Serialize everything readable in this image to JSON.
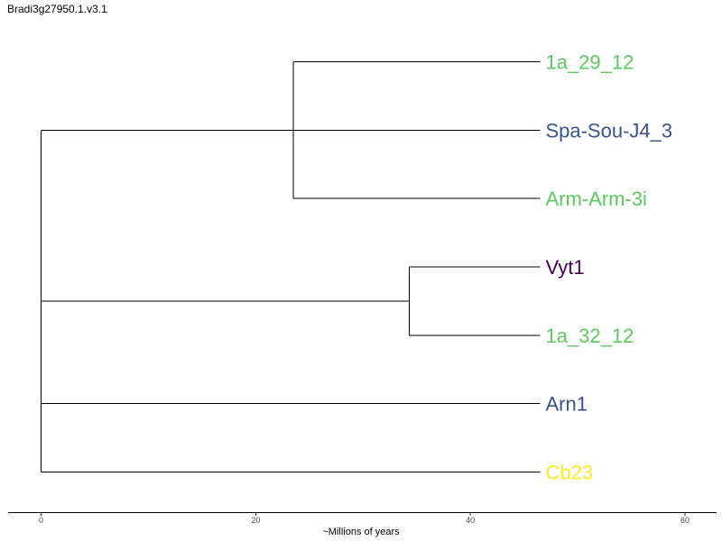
{
  "title": "Bradi3g27950.1.v3.1",
  "chart_data": {
    "type": "dendrogram",
    "xlabel": "~Millions of years",
    "xlim": [
      -3,
      63
    ],
    "x_ticks": [
      0,
      20,
      40,
      60
    ],
    "x_tick_labels": [
      "0",
      "20",
      "40",
      "60"
    ],
    "grid": false,
    "leaves": [
      {
        "id": "L1",
        "label": "1a_29_12",
        "color": "#5ec962"
      },
      {
        "id": "L2",
        "label": "Spa-Sou-J4_3",
        "color": "#3b528b"
      },
      {
        "id": "L3",
        "label": "Arm-Arm-3i",
        "color": "#5ec962"
      },
      {
        "id": "L4",
        "label": "Vyt1",
        "color": "#440154"
      },
      {
        "id": "L5",
        "label": "1a_32_12",
        "color": "#5ec962"
      },
      {
        "id": "L6",
        "label": "Arn1",
        "color": "#3b528b"
      },
      {
        "id": "L7",
        "label": "Cb23",
        "color": "#fde725"
      }
    ],
    "leaf_position": 46.5,
    "branches": [
      {
        "from": 0,
        "to": 23.5,
        "child": "N_A"
      },
      {
        "from": 23.5,
        "to": 46.5,
        "child": "L1"
      },
      {
        "from": 23.5,
        "to": 46.5,
        "child": "L3"
      },
      {
        "from": 0,
        "to": 46.5,
        "child": "L2"
      },
      {
        "from": 0,
        "to": 34.3,
        "child": "N_B"
      },
      {
        "from": 34.3,
        "to": 46.5,
        "child": "L4"
      },
      {
        "from": 34.3,
        "to": 46.5,
        "child": "L5"
      },
      {
        "from": 0,
        "to": 46.5,
        "child": "L6"
      },
      {
        "from": 0,
        "to": 46.5,
        "child": "L7"
      }
    ]
  }
}
